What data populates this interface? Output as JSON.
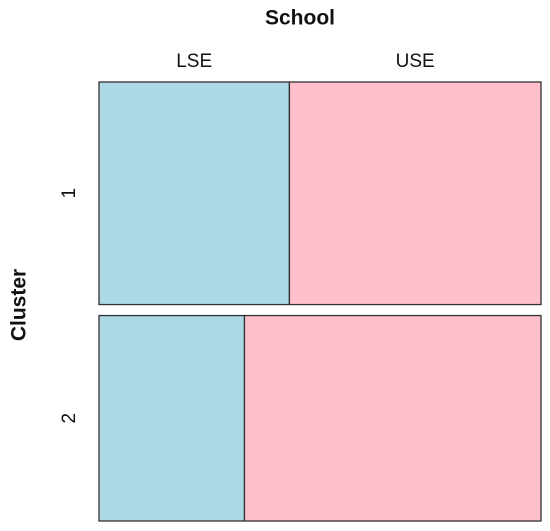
{
  "chart_data": {
    "type": "mosaic",
    "x_label": "School",
    "y_label": "Cluster",
    "categories": [
      "1",
      "2"
    ],
    "series": [
      {
        "name": "LSE",
        "color": "#add8e6",
        "values": [
          22.4,
          15.8
        ]
      },
      {
        "name": "USE",
        "color": "#ffc0cb",
        "values": [
          29.6,
          32.2
        ]
      }
    ]
  }
}
